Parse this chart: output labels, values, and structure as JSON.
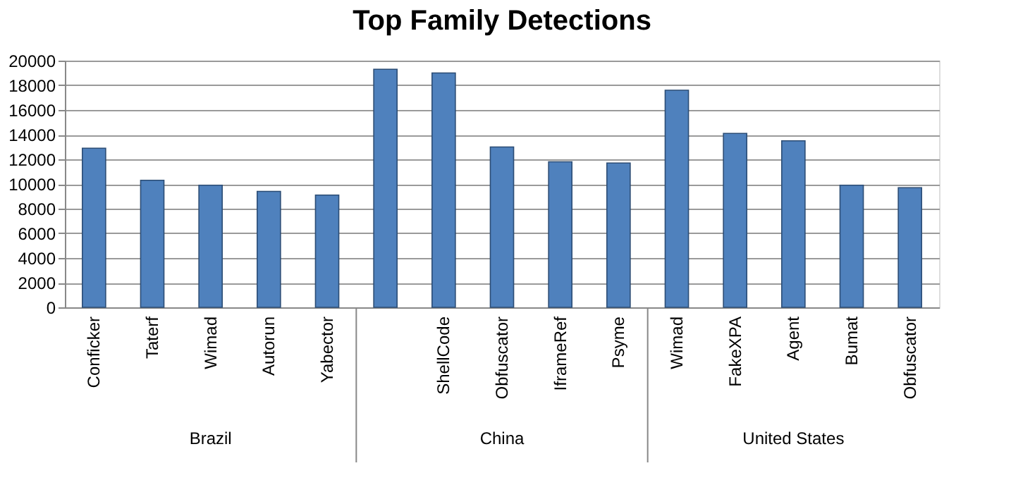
{
  "chart_data": {
    "type": "bar",
    "title": "Top Family Detections",
    "categories": [
      "Conficker",
      "Taterf",
      "Wimad",
      "Autorun",
      "Yabector",
      null,
      "ShellCode",
      "Obfuscator",
      "IframeRef",
      "Psyme",
      "Wimad",
      "FakeXPA",
      "Agent",
      "Bumat",
      "Obfuscator"
    ],
    "values": [
      12900,
      10300,
      9900,
      9400,
      9100,
      19300,
      19000,
      13000,
      11800,
      11700,
      17600,
      14100,
      13500,
      9900,
      9700
    ],
    "color": "#4f81bd",
    "ylim": [
      0,
      20000
    ],
    "yticks": [
      0,
      2000,
      4000,
      6000,
      8000,
      10000,
      12000,
      14000,
      16000,
      18000,
      20000
    ],
    "grid": "y",
    "annotations": [
      "Brazil",
      "China",
      "United States"
    ]
  }
}
